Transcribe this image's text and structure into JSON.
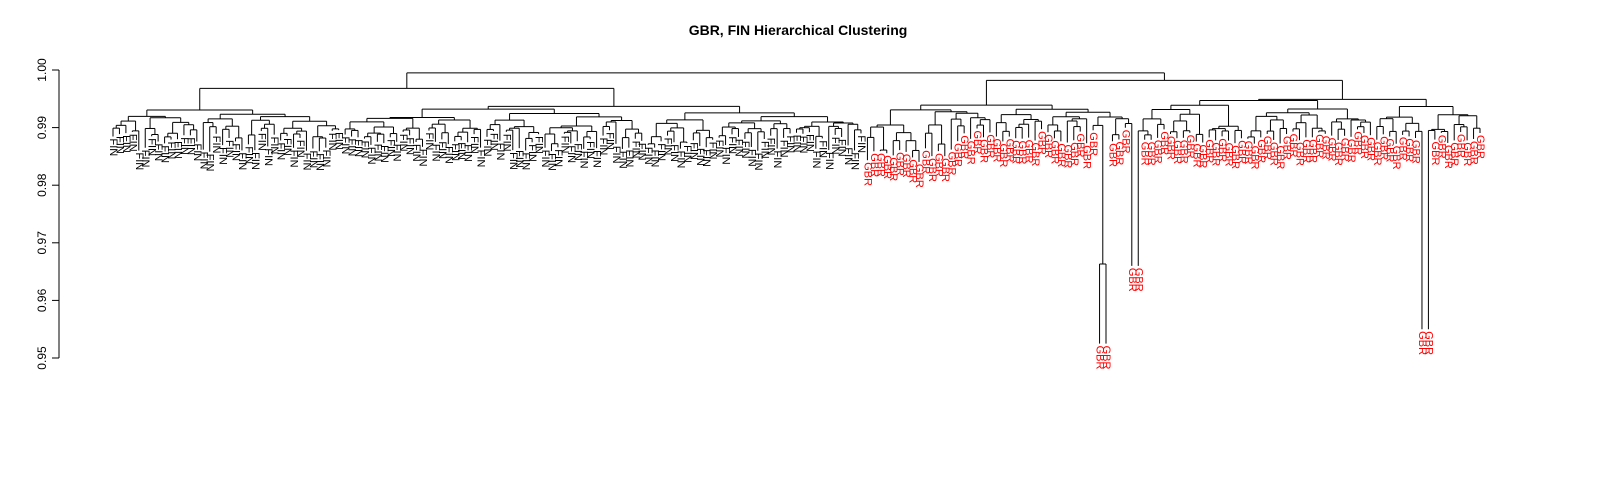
{
  "chart_data": {
    "type": "dendrogram",
    "title": "GBR, FIN Hierarchical Clustering",
    "xlabel": "",
    "ylabel": "",
    "ylim": [
      0.95,
      1.0
    ],
    "yticks": [
      0.95,
      0.96,
      0.97,
      0.98,
      0.99,
      1.0
    ],
    "ytick_labels": [
      "0.95",
      "0.96",
      "0.97",
      "0.98",
      "0.99",
      "1.00"
    ],
    "grid": false,
    "groups": [
      {
        "label": "FIN",
        "color": "#000000",
        "approx_leaf_count": 117
      },
      {
        "label": "GBR",
        "color": "#ff0000",
        "approx_leaf_count": 96
      }
    ],
    "root_height": 0.9995,
    "top_split_heights": [
      0.9968,
      0.9982
    ],
    "notable_leaf_merge_heights": [
      0.9563,
      0.9738,
      0.9635,
      0.9852,
      0.9887
    ]
  }
}
